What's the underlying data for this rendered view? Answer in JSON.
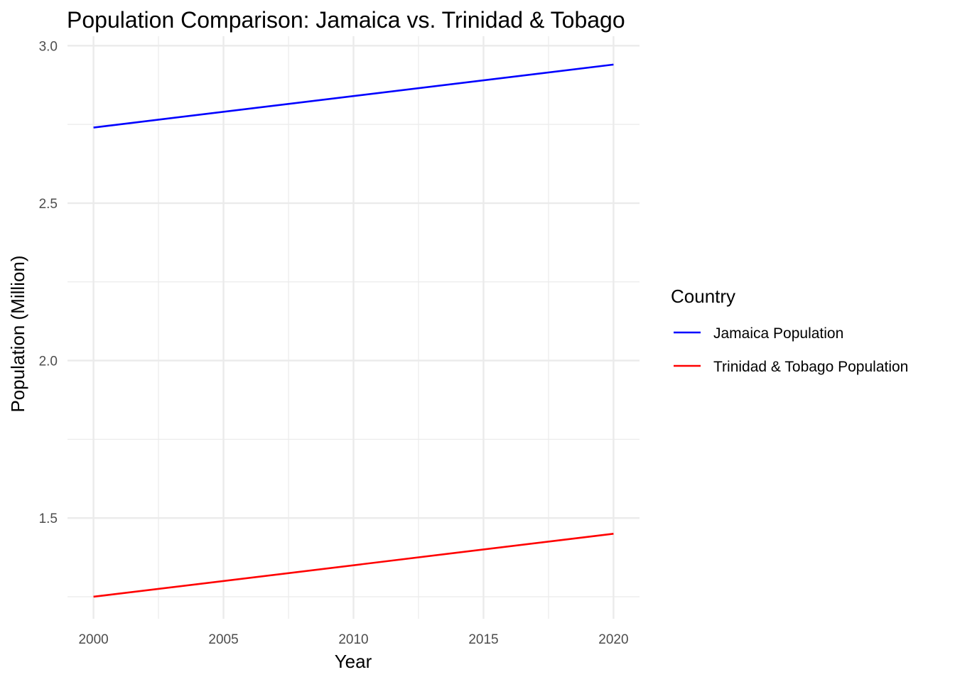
{
  "chart_data": {
    "type": "line",
    "title": "Population Comparison: Jamaica vs. Trinidad & Tobago",
    "xlabel": "Year",
    "ylabel": "Population (Million)",
    "xlim": [
      1999,
      2021
    ],
    "ylim": [
      1.18,
      3.03
    ],
    "x_ticks": [
      2000,
      2005,
      2010,
      2015,
      2020
    ],
    "x_tick_labels": [
      "2000",
      "2005",
      "2010",
      "2015",
      "2020"
    ],
    "y_ticks": [
      1.5,
      2.0,
      2.5,
      3.0
    ],
    "y_tick_labels": [
      "1.5",
      "2.0",
      "2.5",
      "3.0"
    ],
    "x_minor_ticks": [
      2002.5,
      2007.5,
      2012.5,
      2017.5
    ],
    "y_minor_ticks": [
      1.25,
      1.75,
      2.25,
      2.75
    ],
    "grid": true,
    "legend": {
      "title": "Country",
      "position": "right"
    },
    "series": [
      {
        "name": "Jamaica Population",
        "color": "#0000ff",
        "x": [
          2000,
          2020
        ],
        "y": [
          2.74,
          2.94
        ]
      },
      {
        "name": "Trinidad & Tobago Population",
        "color": "#ff0000",
        "x": [
          2000,
          2020
        ],
        "y": [
          1.25,
          1.45
        ]
      }
    ]
  }
}
